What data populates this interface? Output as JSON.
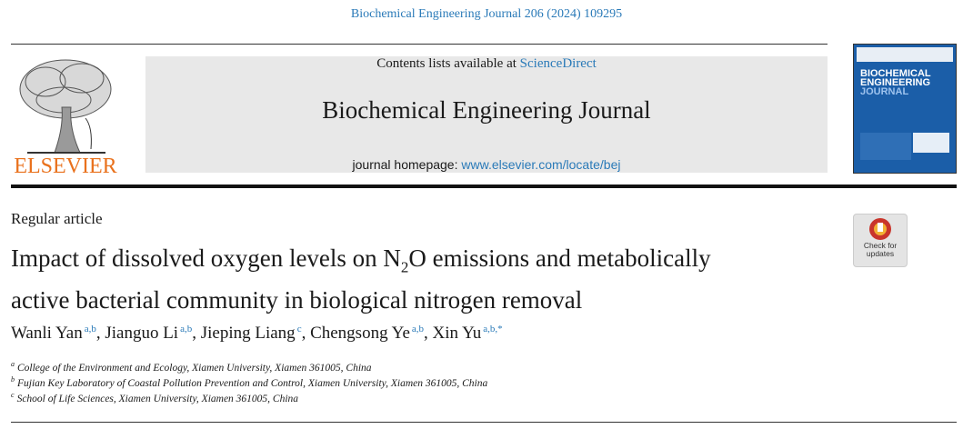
{
  "header": {
    "citation": "Biochemical Engineering Journal 206 (2024) 109295",
    "contents_prefix": "Contents lists available at",
    "contents_link": "ScienceDirect",
    "journal_title": "Biochemical Engineering Journal",
    "homepage_prefix": "journal homepage:",
    "homepage_link": "www.elsevier.com/locate/bej",
    "publisher": "ELSEVIER",
    "cover_title": [
      "BIOCHEMICAL",
      "ENGINEERING",
      "JOURNAL"
    ]
  },
  "article": {
    "type": "Regular article",
    "title": [
      "Impact of dissolved oxygen levels on N",
      "2",
      "O emissions and metabolically",
      "active bacterial community in biological nitrogen removal"
    ],
    "check_updates": [
      "Check for",
      "updates"
    ],
    "authors": {
      "separator": ",",
      "list": [
        {
          "name": "Wanli Yan",
          "marks": "a,b"
        },
        {
          "name": "Jianguo Li",
          "marks": "a,b"
        },
        {
          "name": "Jieping Liang",
          "marks": "c"
        },
        {
          "name": "Chengsong Ye",
          "marks": "a,b"
        },
        {
          "name": "Xin Yu",
          "marks": "a,b,*"
        }
      ]
    },
    "affiliations": [
      {
        "label": "a",
        "text": "College of the Environment and Ecology, Xiamen University, Xiamen 361005, China"
      },
      {
        "label": "b",
        "text": "Fujian Key Laboratory of Coastal Pollution Prevention and Control, Xiamen University, Xiamen 361005, China"
      },
      {
        "label": "c",
        "text": "School of Life Sciences, Xiamen University, Xiamen 361005, China"
      }
    ]
  }
}
